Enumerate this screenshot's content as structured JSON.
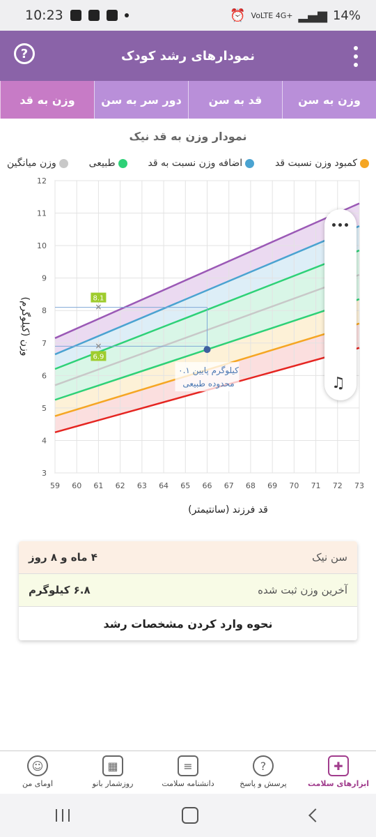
{
  "status_bar": {
    "time": "10:23",
    "network": "VoLTE 4G+",
    "battery": "14%"
  },
  "app_bar": {
    "title": "نمودارهای رشد کودک",
    "help_label": "?"
  },
  "tabs": [
    {
      "label": "وزن به سن"
    },
    {
      "label": "قد به سن"
    },
    {
      "label": "دور سر به سن"
    },
    {
      "label": "وزن به قد",
      "active": true
    }
  ],
  "chart_title": "نمودار وزن به قد نیک",
  "legend": [
    {
      "label": "کمبود وزن نسبت قد",
      "color": "#f5a623"
    },
    {
      "label": "اضافه وزن نسبت به قد",
      "color": "#4aa3d1"
    },
    {
      "label": "طبیعی",
      "color": "#2ed177"
    },
    {
      "label": "وزن میانگین",
      "color": "#c8c8c8"
    }
  ],
  "chart_data": {
    "type": "line",
    "xlabel": "قد فرزند (سانتیمتر)",
    "ylabel": "وزن (کیلوگرم)",
    "xlim": [
      59,
      73
    ],
    "ylim": [
      3,
      12
    ],
    "x_ticks": [
      59,
      60,
      61,
      62,
      63,
      64,
      65,
      66,
      67,
      68,
      69,
      70,
      71,
      72,
      73
    ],
    "y_ticks": [
      3,
      4,
      5,
      6,
      7,
      8,
      9,
      10,
      11,
      12
    ],
    "series": [
      {
        "color": "#9b59b6",
        "x": [
          59,
          73
        ],
        "y": [
          7.15,
          11.3
        ]
      },
      {
        "color": "#4aa3d1",
        "x": [
          59,
          73
        ],
        "y": [
          6.65,
          10.6
        ]
      },
      {
        "color": "#2ed177",
        "x": [
          59,
          73
        ],
        "y": [
          6.2,
          9.85
        ]
      },
      {
        "color": "#c8c8c8",
        "x": [
          59,
          73
        ],
        "y": [
          5.7,
          9.1
        ]
      },
      {
        "color": "#2ed177",
        "x": [
          59,
          73
        ],
        "y": [
          5.25,
          8.35
        ]
      },
      {
        "color": "#f5a623",
        "x": [
          59,
          73
        ],
        "y": [
          4.75,
          7.6
        ]
      },
      {
        "color": "#e52521",
        "x": [
          59,
          73
        ],
        "y": [
          4.25,
          6.85
        ]
      }
    ],
    "markers": [
      {
        "x": 61,
        "y": 8.1,
        "label": "8.1"
      },
      {
        "x": 61,
        "y": 6.9,
        "label": "6.9"
      }
    ],
    "child_point": {
      "x": 66,
      "y": 6.8
    },
    "annotation": [
      "۰.۱ کیلوگرم پایین",
      "محدوده طبیعی"
    ]
  },
  "info_card": {
    "age_label": "سن نیک",
    "age_value": "۴ ماه و ۸ روز",
    "weight_label": "آخرین وزن ثبت شده",
    "weight_value": "۶.۸ کیلوگرم",
    "help_button": "نحوه وارد کردن مشخصات رشد"
  },
  "bottom_nav": [
    {
      "label": "ابزارهای سلامت",
      "icon": "medical-kit-icon",
      "active": true
    },
    {
      "label": "پرسش و پاسخ",
      "icon": "question-bubble-icon"
    },
    {
      "label": "دانشنامه سلامت",
      "icon": "newspaper-icon"
    },
    {
      "label": "روزشمار بانو",
      "icon": "calendar-icon"
    },
    {
      "label": "اومای من",
      "icon": "user-avatar-icon"
    }
  ]
}
